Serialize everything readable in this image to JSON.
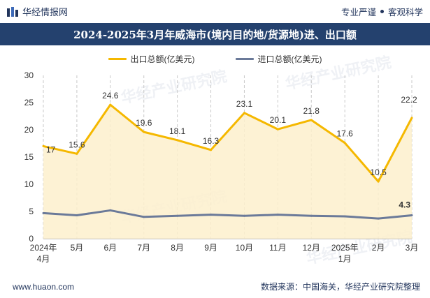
{
  "header": {
    "brand_name": "华经情报网",
    "slogan_left": "专业严谨",
    "slogan_right": "客观科学"
  },
  "title": "2024-2025年3月年威海市(境内目的地/货源地)进、出口额",
  "legend": {
    "export_label": "出口总额(亿美元)",
    "import_label": "进口总额(亿美元)"
  },
  "colors": {
    "export_line": "#f5b800",
    "export_fill": "#fdf0cc",
    "import_line": "#6b7a99",
    "title_bar": "#24416e"
  },
  "watermark": {
    "text": "华经产业研究院",
    "url": "www.huaon.com"
  },
  "footer": {
    "website": "www.huaon.com",
    "source": "数据来源：中国海关，华经产业研究院整理"
  },
  "chart_data": {
    "type": "line",
    "title": "2024-2025年3月年威海市(境内目的地/货源地)进、出口额",
    "categories": [
      "2024年\n4月",
      "5月",
      "6月",
      "7月",
      "8月",
      "9月",
      "10月",
      "11月",
      "12月",
      "2025年\n1月",
      "2月",
      "3月"
    ],
    "series": [
      {
        "name": "出口总额(亿美元)",
        "values": [
          17,
          15.6,
          24.6,
          19.6,
          18.1,
          16.3,
          23.1,
          20.1,
          21.8,
          17.6,
          10.5,
          22.2
        ],
        "area": true
      },
      {
        "name": "进口总额(亿美元)",
        "values": [
          4.7,
          4.3,
          5.2,
          4.0,
          4.2,
          4.4,
          4.2,
          4.4,
          4.2,
          4.1,
          3.7,
          4.3
        ]
      }
    ],
    "data_labels": {
      "出口总额(亿美元)": [
        "17",
        "15.6",
        "24.6",
        "19.6",
        "18.1",
        "16.3",
        "23.1",
        "20.1",
        "21.8",
        "17.6",
        "10.5",
        "22.2"
      ],
      "进口总额(亿美元)": [
        "",
        "",
        "",
        "",
        "",
        "",
        "",
        "",
        "",
        "",
        "",
        "4.3"
      ]
    },
    "ylim": [
      0,
      30
    ],
    "yticks": [
      0,
      5,
      10,
      15,
      20,
      25,
      30
    ],
    "xlabel": "",
    "ylabel": "",
    "grid": "vertical-dashed",
    "legend_position": "top-center"
  }
}
